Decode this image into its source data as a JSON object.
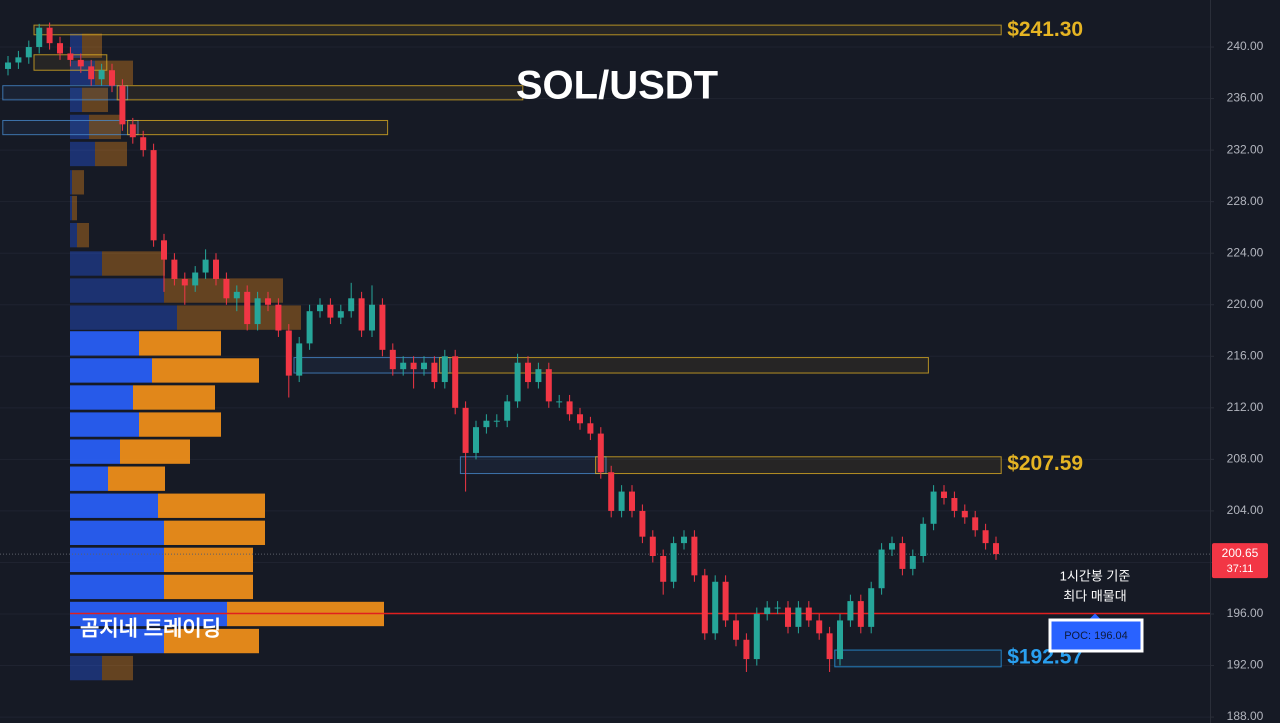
{
  "chart_data": {
    "type": "candlestick",
    "title": "SOL/USDT",
    "watermark": "곰지네 트레이딩",
    "annotation": [
      "1시간봉 기준",
      "최다 매물대"
    ],
    "up_color": "#26a69a",
    "down_color": "#f23645",
    "open": [
      238.3,
      238.8,
      239.2,
      240.0,
      241.5,
      240.3,
      239.5,
      239.0,
      238.5,
      237.5,
      238.2,
      237.0,
      234.0,
      233.0,
      232.0,
      225.0,
      223.5,
      222.0,
      221.5,
      222.5,
      223.5,
      222.0,
      220.5,
      221.0,
      218.5,
      220.5,
      220.0,
      218.0,
      214.5,
      217.0,
      219.5,
      220.0,
      219.0,
      219.5,
      220.5,
      218.0,
      220.0,
      216.5,
      215.0,
      215.5,
      215.0,
      215.5,
      214.0,
      216.0,
      212.0,
      208.5,
      210.5,
      211.0,
      211.0,
      212.5,
      215.5,
      214.0,
      215.0,
      212.5,
      212.5,
      211.5,
      210.8,
      210.0,
      207.0,
      204.0,
      205.5,
      204.0,
      202.0,
      200.5,
      198.5,
      201.5,
      202.0,
      199.0,
      194.5,
      198.5,
      195.5,
      194.0,
      192.5,
      196.0,
      196.5,
      196.5,
      195.0,
      196.5,
      195.5,
      194.5,
      192.5,
      195.5,
      197.0,
      195.0,
      198.0,
      201.0,
      201.5,
      199.5,
      200.5,
      203.0,
      205.5,
      205.0,
      204.0,
      203.5,
      202.5,
      201.5
    ],
    "high": [
      239.3,
      239.7,
      240.5,
      241.8,
      241.9,
      240.8,
      240.0,
      239.5,
      239.0,
      238.7,
      238.7,
      237.5,
      234.5,
      233.5,
      232.5,
      225.5,
      224.0,
      222.5,
      223.0,
      224.3,
      224.0,
      222.5,
      221.5,
      221.5,
      221.0,
      221.0,
      220.5,
      218.5,
      217.5,
      220.0,
      220.5,
      220.5,
      220.0,
      221.7,
      221.0,
      221.5,
      220.5,
      217.0,
      216.0,
      216.0,
      216.0,
      216.0,
      216.5,
      216.5,
      212.5,
      211.0,
      211.5,
      211.5,
      213.0,
      216.2,
      216.0,
      215.5,
      215.5,
      213.0,
      213.0,
      212.0,
      211.3,
      210.5,
      207.5,
      206.0,
      206.0,
      204.5,
      202.5,
      201.0,
      202.0,
      202.5,
      202.5,
      199.5,
      199.0,
      199.0,
      196.0,
      194.5,
      196.5,
      197.0,
      197.0,
      197.0,
      197.0,
      197.0,
      196.0,
      195.0,
      196.0,
      197.5,
      197.5,
      198.5,
      201.5,
      202.0,
      202.0,
      201.0,
      203.5,
      206.0,
      206.0,
      205.5,
      204.5,
      204.0,
      203.0,
      202.0
    ],
    "low": [
      237.8,
      238.3,
      238.7,
      239.5,
      239.8,
      239.0,
      238.5,
      238.0,
      237.0,
      237.0,
      236.5,
      233.5,
      232.5,
      231.5,
      224.5,
      221.0,
      221.5,
      220.0,
      221.0,
      222.0,
      221.5,
      220.0,
      219.5,
      218.0,
      218.0,
      219.5,
      217.5,
      212.8,
      214.0,
      216.5,
      219.0,
      218.5,
      218.5,
      219.0,
      217.5,
      217.5,
      216.0,
      214.5,
      214.5,
      213.5,
      214.5,
      213.5,
      213.5,
      211.5,
      205.5,
      208.0,
      210.0,
      210.5,
      210.5,
      212.0,
      213.5,
      213.5,
      212.0,
      212.0,
      211.0,
      210.3,
      209.5,
      206.5,
      203.5,
      203.5,
      203.5,
      201.5,
      200.0,
      197.5,
      198.0,
      201.0,
      198.5,
      194.0,
      194.0,
      195.0,
      193.5,
      191.5,
      192.0,
      195.5,
      196.0,
      194.5,
      194.5,
      195.0,
      194.0,
      191.5,
      192.0,
      195.0,
      194.5,
      194.5,
      197.5,
      200.5,
      199.0,
      199.0,
      200.0,
      202.5,
      204.5,
      203.5,
      203.0,
      202.0,
      201.0,
      200.2
    ],
    "close": [
      238.8,
      239.2,
      240.0,
      241.5,
      240.3,
      239.5,
      239.0,
      238.5,
      237.5,
      238.2,
      237.0,
      234.0,
      233.0,
      232.0,
      225.0,
      223.5,
      222.0,
      221.5,
      222.5,
      223.5,
      222.0,
      220.5,
      221.0,
      218.5,
      220.5,
      220.0,
      218.0,
      214.5,
      217.0,
      219.5,
      220.0,
      219.0,
      219.5,
      220.5,
      218.0,
      220.0,
      216.5,
      215.0,
      215.5,
      215.0,
      215.5,
      214.0,
      216.0,
      212.0,
      208.5,
      210.5,
      211.0,
      211.0,
      212.5,
      215.5,
      214.0,
      215.0,
      212.5,
      212.5,
      211.5,
      210.8,
      210.0,
      207.0,
      204.0,
      205.5,
      204.0,
      202.0,
      200.5,
      198.5,
      201.5,
      202.0,
      199.0,
      194.5,
      198.5,
      195.5,
      194.0,
      192.5,
      196.0,
      196.5,
      196.5,
      195.0,
      196.5,
      195.5,
      194.5,
      192.5,
      195.5,
      197.0,
      195.0,
      198.0,
      201.0,
      201.5,
      199.5,
      200.5,
      203.0,
      205.5,
      205.0,
      204.0,
      203.5,
      202.5,
      201.5,
      200.65
    ],
    "ylim": [
      187.54,
      243.65
    ],
    "yticks": [
      {
        "value": 188,
        "label": "188.00"
      },
      {
        "value": 192,
        "label": "192.00"
      },
      {
        "value": 196,
        "label": "196.00"
      },
      {
        "value": 200,
        "label": "200.00"
      },
      {
        "value": 204,
        "label": "204.00"
      },
      {
        "value": 208,
        "label": "208.00"
      },
      {
        "value": 212,
        "label": "212.00"
      },
      {
        "value": 216,
        "label": "216.00"
      },
      {
        "value": 220,
        "label": "220.00"
      },
      {
        "value": 224,
        "label": "224.00"
      },
      {
        "value": 228,
        "label": "228.00"
      },
      {
        "value": 232,
        "label": "232.00"
      },
      {
        "value": 236,
        "label": "236.00"
      },
      {
        "value": 240,
        "label": "240.00"
      }
    ],
    "grid": true,
    "zones": [
      {
        "x": [
          3,
          95
        ],
        "ylim": [
          240.95,
          241.7
        ],
        "color": "#e5b423",
        "label": {
          "value": 241.3,
          "label": "$241.30"
        }
      },
      {
        "x": [
          3,
          9
        ],
        "ylim": [
          238.2,
          239.4
        ],
        "color": "#e5b423"
      },
      {
        "x": [
          0,
          11
        ],
        "ylim": [
          235.9,
          237.0
        ],
        "color": "#4a8fd6"
      },
      {
        "x": [
          11,
          49
        ],
        "ylim": [
          235.9,
          237.0
        ],
        "color": "#e5b423"
      },
      {
        "x": [
          0,
          12
        ],
        "ylim": [
          233.2,
          234.3
        ],
        "color": "#4a8fd6"
      },
      {
        "x": [
          12,
          36
        ],
        "ylim": [
          233.2,
          234.3
        ],
        "color": "#e5b423"
      },
      {
        "x": [
          28,
          42
        ],
        "ylim": [
          214.7,
          215.9
        ],
        "color": "#4a8fd6"
      },
      {
        "x": [
          42,
          88
        ],
        "ylim": [
          214.7,
          215.9
        ],
        "color": "#e5b423"
      },
      {
        "x": [
          44,
          57
        ],
        "ylim": [
          206.9,
          208.2
        ],
        "color": "#4a8fd6"
      },
      {
        "x": [
          57,
          95
        ],
        "ylim": [
          206.9,
          208.2
        ],
        "color": "#e5b423",
        "label": {
          "value": 207.59,
          "label": "$207.59"
        }
      },
      {
        "x": [
          80,
          95
        ],
        "ylim": [
          191.9,
          193.2
        ],
        "color": "#2aa0f0",
        "label": {
          "value": 192.57,
          "label": "$192.57"
        }
      }
    ],
    "volume_profile": {
      "price": [
        240.1,
        238.0,
        235.9,
        233.8,
        231.7,
        229.5,
        227.5,
        225.4,
        223.2,
        221.1,
        219.0,
        217.0,
        214.9,
        212.8,
        210.7,
        208.6,
        206.5,
        204.4,
        202.3,
        200.2,
        198.1,
        196.0,
        193.9,
        191.8
      ],
      "buy": [
        12,
        25,
        12,
        19,
        25,
        2,
        2,
        7,
        32,
        94,
        107,
        69,
        82,
        63,
        69,
        50,
        38,
        88,
        94,
        94,
        94,
        157,
        94,
        32
      ],
      "sell": [
        20,
        38,
        26,
        32,
        32,
        12,
        5,
        12,
        63,
        119,
        124,
        82,
        107,
        82,
        82,
        70,
        57,
        107,
        101,
        89,
        89,
        157,
        95,
        31
      ],
      "buy_color": "#2962ff",
      "sell_color": "#f7931a",
      "value_area": [
        193,
        218
      ]
    },
    "poc": {
      "value": 196.04,
      "label": "POC: 196.04",
      "color": "#e01f1f"
    },
    "last_price": 200.65,
    "countdown": "37:11"
  }
}
